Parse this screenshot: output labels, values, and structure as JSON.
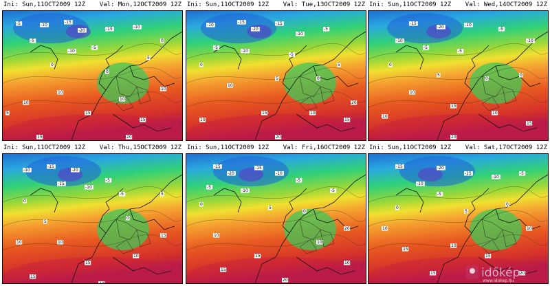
{
  "panels": [
    {
      "ini": "Ini: Sun,11OCT2009  12Z",
      "valid": "Val: Mon,12OCT2009  12Z",
      "labels": [
        [
          "-5",
          20,
          20
        ],
        [
          "-10",
          55,
          22
        ],
        [
          "-15",
          90,
          18
        ],
        [
          "-20",
          110,
          30
        ],
        [
          "-15",
          150,
          28
        ],
        [
          "-10",
          190,
          25
        ],
        [
          "-5",
          40,
          45
        ],
        [
          "-10",
          95,
          60
        ],
        [
          "-5",
          130,
          55
        ],
        [
          "0",
          70,
          80
        ],
        [
          "0",
          150,
          90
        ],
        [
          "5",
          210,
          70
        ],
        [
          "0",
          230,
          45
        ],
        [
          "10",
          30,
          135
        ],
        [
          "10",
          80,
          120
        ],
        [
          "15",
          120,
          150
        ],
        [
          "10",
          170,
          130
        ],
        [
          "15",
          200,
          160
        ],
        [
          "20",
          180,
          185
        ],
        [
          "15",
          50,
          185
        ],
        [
          "5",
          5,
          150
        ],
        [
          "10",
          230,
          115
        ]
      ]
    },
    {
      "ini": "Ini: Sun,11OCT2009  12Z",
      "valid": "Val: Tue,13OCT2009  12Z",
      "labels": [
        [
          "-10",
          30,
          22
        ],
        [
          "-15",
          75,
          18
        ],
        [
          "-20",
          95,
          28
        ],
        [
          "-15",
          130,
          20
        ],
        [
          "-10",
          160,
          35
        ],
        [
          "-5",
          200,
          28
        ],
        [
          "-5",
          40,
          55
        ],
        [
          "-10",
          80,
          60
        ],
        [
          "-5",
          150,
          65
        ],
        [
          "0",
          20,
          80
        ],
        [
          "5",
          130,
          100
        ],
        [
          "0",
          190,
          100
        ],
        [
          "10",
          60,
          110
        ],
        [
          "15",
          110,
          150
        ],
        [
          "10",
          180,
          150
        ],
        [
          "15",
          230,
          160
        ],
        [
          "20",
          130,
          185
        ],
        [
          "20",
          240,
          135
        ],
        [
          "10",
          20,
          160
        ],
        [
          "5",
          220,
          80
        ]
      ]
    },
    {
      "ini": "Ini: Sun,11OCT2009  12Z",
      "valid": "Val: Wed,14OCT2009  12Z",
      "labels": [
        [
          "-15",
          60,
          20
        ],
        [
          "-20",
          100,
          25
        ],
        [
          "-10",
          140,
          22
        ],
        [
          "-5",
          190,
          28
        ],
        [
          "-10",
          40,
          45
        ],
        [
          "-5",
          80,
          55
        ],
        [
          "0",
          30,
          80
        ],
        [
          "-5",
          130,
          60
        ],
        [
          "-10",
          230,
          45
        ],
        [
          "5",
          100,
          95
        ],
        [
          "0",
          170,
          100
        ],
        [
          "10",
          60,
          120
        ],
        [
          "15",
          120,
          140
        ],
        [
          "10",
          180,
          150
        ],
        [
          "15",
          230,
          165
        ],
        [
          "10",
          20,
          155
        ],
        [
          "0",
          220,
          95
        ],
        [
          "20",
          120,
          185
        ]
      ]
    },
    {
      "ini": "Ini: Sun,11OCT2009  12Z",
      "valid": "Val: Thu,15OCT2009  12Z",
      "labels": [
        [
          "-10",
          30,
          25
        ],
        [
          "-15",
          65,
          20
        ],
        [
          "-20",
          100,
          25
        ],
        [
          "-15",
          80,
          45
        ],
        [
          "-10",
          120,
          50
        ],
        [
          "-5",
          150,
          40
        ],
        [
          "0",
          30,
          70
        ],
        [
          "-5",
          170,
          60
        ],
        [
          "5",
          60,
          100
        ],
        [
          "0",
          180,
          95
        ],
        [
          "10",
          20,
          130
        ],
        [
          "10",
          80,
          130
        ],
        [
          "15",
          120,
          160
        ],
        [
          "10",
          190,
          150
        ],
        [
          "15",
          230,
          120
        ],
        [
          "15",
          40,
          180
        ],
        [
          "20",
          140,
          190
        ],
        [
          "5",
          230,
          60
        ]
      ]
    },
    {
      "ini": "Ini: Sun,11OCT2009  12Z",
      "valid": "Val: Fri,16OCT2009  12Z",
      "labels": [
        [
          "-15",
          40,
          20
        ],
        [
          "-20",
          60,
          30
        ],
        [
          "-15",
          100,
          22
        ],
        [
          "-10",
          130,
          30
        ],
        [
          "-5",
          160,
          40
        ],
        [
          "-5",
          30,
          50
        ],
        [
          "-10",
          80,
          55
        ],
        [
          "0",
          20,
          75
        ],
        [
          "5",
          120,
          80
        ],
        [
          "0",
          170,
          85
        ],
        [
          "-5",
          210,
          55
        ],
        [
          "10",
          40,
          120
        ],
        [
          "15",
          100,
          150
        ],
        [
          "10",
          190,
          130
        ],
        [
          "20",
          230,
          110
        ],
        [
          "15",
          50,
          170
        ],
        [
          "20",
          140,
          185
        ],
        [
          "10",
          230,
          160
        ]
      ]
    },
    {
      "ini": "Ini: Sun,11OCT2009  12Z",
      "valid": "Val: Sat,17OCT2009  12Z",
      "labels": [
        [
          "-15",
          40,
          20
        ],
        [
          "-20",
          100,
          22
        ],
        [
          "-15",
          140,
          30
        ],
        [
          "-10",
          180,
          35
        ],
        [
          "-5",
          220,
          30
        ],
        [
          "-10",
          70,
          45
        ],
        [
          "-5",
          100,
          60
        ],
        [
          "0",
          40,
          80
        ],
        [
          "5",
          140,
          85
        ],
        [
          "0",
          200,
          75
        ],
        [
          "10",
          20,
          110
        ],
        [
          "15",
          50,
          140
        ],
        [
          "10",
          120,
          135
        ],
        [
          "15",
          170,
          150
        ],
        [
          "20",
          220,
          175
        ],
        [
          "15",
          90,
          175
        ],
        [
          "10",
          230,
          110
        ]
      ]
    }
  ],
  "watermark": {
    "brand": "időkép",
    "url": "www.idokep.hu"
  }
}
